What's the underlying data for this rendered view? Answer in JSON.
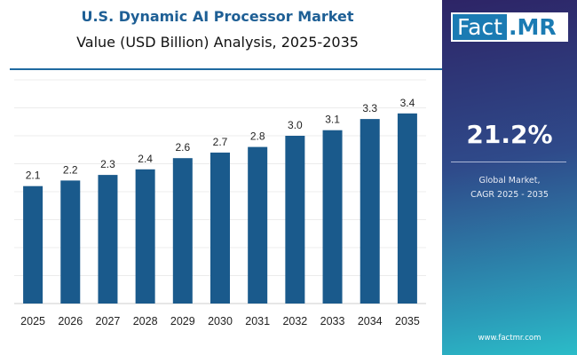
{
  "chart_data": {
    "type": "bar",
    "title": "U.S. Dynamic AI Processor Market",
    "subtitle": "Value (USD Billion) Analysis, 2025-2035",
    "categories": [
      "2025",
      "2026",
      "2027",
      "2028",
      "2029",
      "2030",
      "2031",
      "2032",
      "2033",
      "2034",
      "2035"
    ],
    "values": [
      2.1,
      2.2,
      2.3,
      2.4,
      2.6,
      2.7,
      2.8,
      3.0,
      3.1,
      3.3,
      3.4
    ],
    "labels": [
      "2.1",
      "2.2",
      "2.3",
      "2.4",
      "2.6",
      "2.7",
      "2.8",
      "3.0",
      "3.1",
      "3.3",
      "3.4"
    ],
    "ylim": [
      0,
      4
    ],
    "grid": true,
    "bar_color": "#1a5a8c"
  },
  "panel": {
    "logo": "Fact.MR",
    "logo_left": "Fact",
    "logo_right": ".MR",
    "cagr": "21.2%",
    "label_line1": "Global Market,",
    "label_line2": "CAGR 2025 - 2035",
    "url": "www.factmr.com"
  }
}
